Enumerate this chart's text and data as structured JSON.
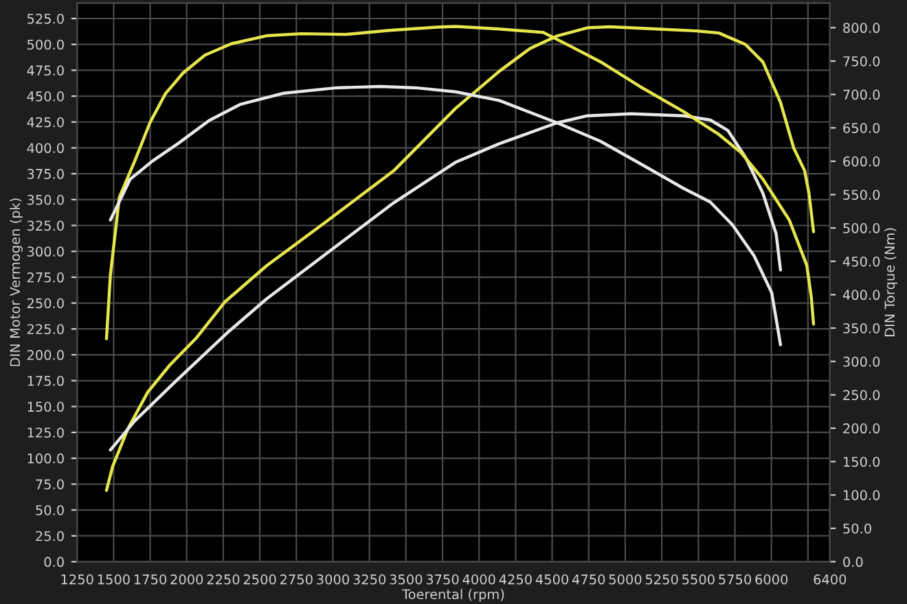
{
  "chart_data": {
    "type": "line",
    "xlabel": "Toerental (rpm)",
    "ylabel": "DIN Motor Vermogen (pk)",
    "y2label": "DIN Torque (Nm)",
    "xlim": [
      1250,
      6400
    ],
    "xticks": [
      1250,
      1500,
      1750,
      2000,
      2250,
      2500,
      2750,
      3000,
      3250,
      3500,
      3750,
      4000,
      4250,
      4500,
      4750,
      5000,
      5250,
      5500,
      5750,
      6000,
      {
        "value": 6250,
        "label": null
      },
      6400
    ],
    "ylim": [
      0,
      540
    ],
    "yticks": [
      {
        "value": 0,
        "label": "0.0"
      },
      {
        "value": 25,
        "label": "25.0"
      },
      {
        "value": 50,
        "label": "50.0"
      },
      {
        "value": 75,
        "label": "75.0"
      },
      {
        "value": 100,
        "label": "100.0"
      },
      {
        "value": 125,
        "label": "125.0"
      },
      {
        "value": 150,
        "label": "150.0"
      },
      {
        "value": 175,
        "label": "175.0"
      },
      {
        "value": 200,
        "label": "200.0"
      },
      {
        "value": 225,
        "label": "225.0"
      },
      {
        "value": 250,
        "label": "250.0"
      },
      {
        "value": 275,
        "label": "275.0"
      },
      {
        "value": 300,
        "label": "300.0"
      },
      {
        "value": 325,
        "label": "325.0"
      },
      {
        "value": 350,
        "label": "350.0"
      },
      {
        "value": 375,
        "label": "375.0"
      },
      {
        "value": 400,
        "label": "400.0"
      },
      {
        "value": 425,
        "label": "425.0"
      },
      {
        "value": 450,
        "label": "450.0"
      },
      {
        "value": 475,
        "label": "475.0"
      },
      {
        "value": 500,
        "label": "500.0"
      },
      {
        "value": 525,
        "label": "525.0"
      }
    ],
    "y2lim": [
      0,
      837
    ],
    "y2ticks": [
      {
        "value": 0,
        "label": "0.0"
      },
      {
        "value": 50,
        "label": "50.0"
      },
      {
        "value": 100,
        "label": "100.0"
      },
      {
        "value": 150,
        "label": "150.0"
      },
      {
        "value": 200,
        "label": "200.0"
      },
      {
        "value": 250,
        "label": "250.0"
      },
      {
        "value": 300,
        "label": "300.0"
      },
      {
        "value": 350,
        "label": "350.0"
      },
      {
        "value": 400,
        "label": "400.0"
      },
      {
        "value": 450,
        "label": "450.0"
      },
      {
        "value": 500,
        "label": "500.0"
      },
      {
        "value": 550,
        "label": "550.0"
      },
      {
        "value": 600,
        "label": "600.0"
      },
      {
        "value": 650,
        "label": "650.0"
      },
      {
        "value": 700,
        "label": "700.0"
      },
      {
        "value": 750,
        "label": "750.0"
      },
      {
        "value": 800,
        "label": "800.0"
      }
    ],
    "grid": true,
    "legend": false,
    "marker": "none",
    "line_style": "solid",
    "series": [
      {
        "color": "#e6e64c",
        "x": [
          1451,
          1493,
          1599,
          1734,
          1884,
          2064,
          2260,
          2546,
          2966,
          3417,
          3838,
          4138,
          4348,
          4529,
          4740,
          4890,
          5191,
          5491,
          5641,
          5822,
          5942,
          6062,
          6152,
          6227,
          6257,
          6288
        ],
        "values": [
          69,
          92,
          129,
          164,
          190,
          216,
          251,
          286,
          330,
          378,
          438,
          474,
          496,
          508,
          516,
          517,
          515,
          513,
          511,
          500,
          483,
          444,
          400,
          378,
          356,
          319
        ]
      },
      {
        "color": "#e8e8e8",
        "x": [
          1478,
          1644,
          1914,
          2275,
          2546,
          2966,
          3417,
          3838,
          4138,
          4529,
          4740,
          5040,
          5401,
          5581,
          5701,
          5822,
          5942,
          6032,
          6062
        ],
        "values": [
          108,
          136,
          173,
          221,
          254,
          299,
          347,
          386,
          404,
          424,
          431,
          433,
          431,
          427,
          417,
          391,
          356,
          317,
          282
        ]
      },
      {
        "color": "#e6e64c",
        "axis": "y2",
        "x": [
          1451,
          1478,
          1539,
          1644,
          1749,
          1854,
          1974,
          2125,
          2305,
          2546,
          2786,
          3087,
          3387,
          3718,
          3838,
          4138,
          4439,
          4619,
          4830,
          5100,
          5401,
          5641,
          5792,
          5942,
          6122,
          6242,
          6273,
          6288
        ],
        "values": [
          334,
          430,
          546,
          600,
          658,
          701,
          732,
          759,
          776,
          788,
          791,
          790,
          796,
          801,
          802,
          798,
          793,
          773,
          749,
          712,
          674,
          640,
          613,
          573,
          512,
          444,
          396,
          356
        ]
      },
      {
        "color": "#e8e8e8",
        "axis": "y2",
        "x": [
          1478,
          1613,
          1764,
          1944,
          2154,
          2365,
          2666,
          3026,
          3327,
          3567,
          3838,
          4138,
          4529,
          4830,
          5130,
          5401,
          5581,
          5732,
          5882,
          6002,
          6062
        ],
        "values": [
          512,
          573,
          600,
          627,
          661,
          685,
          702,
          710,
          712,
          710,
          704,
          691,
          658,
          630,
          593,
          559,
          539,
          505,
          458,
          403,
          325
        ]
      }
    ]
  }
}
